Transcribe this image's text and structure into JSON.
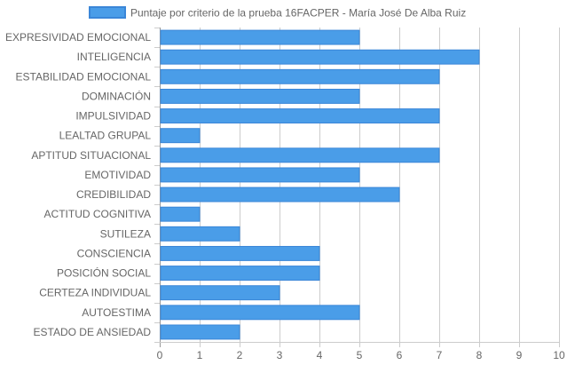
{
  "chart_data": {
    "type": "bar",
    "orientation": "horizontal",
    "categories": [
      "EXPRESIVIDAD EMOCIONAL",
      "INTELIGENCIA",
      "ESTABILIDAD EMOCIONAL",
      "DOMINACIÓN",
      "IMPULSIVIDAD",
      "LEALTAD GRUPAL",
      "APTITUD SITUACIONAL",
      "EMOTIVIDAD",
      "CREDIBILIDAD",
      "ACTITUD COGNITIVA",
      "SUTILEZA",
      "CONSCIENCIA",
      "POSICIÓN SOCIAL",
      "CERTEZA INDIVIDUAL",
      "AUTOESTIMA",
      "ESTADO DE ANSIEDAD"
    ],
    "series": [
      {
        "name": "Puntaje por criterio de la prueba 16FACPER - María José De Alba Ruiz",
        "values": [
          5,
          8,
          7,
          5,
          7,
          1,
          7,
          5,
          6,
          1,
          2,
          4,
          4,
          3,
          5,
          2
        ],
        "color": "#4a9de8",
        "border_color": "#3a86d8"
      }
    ],
    "xlim": [
      0,
      10
    ],
    "x_ticks": [
      "0",
      "1",
      "2",
      "3",
      "4",
      "5",
      "6",
      "7",
      "8",
      "9",
      "10"
    ],
    "grid": true,
    "legend_position": "top"
  }
}
